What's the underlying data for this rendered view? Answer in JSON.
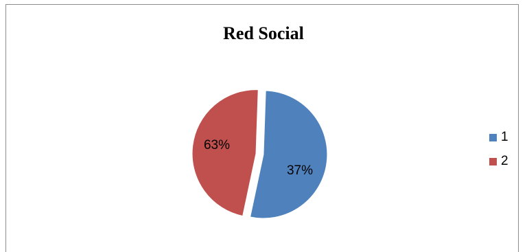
{
  "chart_data": {
    "type": "pie",
    "title": "Red Social",
    "slices": [
      {
        "label": "1",
        "value": 37,
        "display": "37%",
        "color": "#4F81BD"
      },
      {
        "label": "2",
        "value": 63,
        "display": "63%",
        "color": "#C0504D"
      }
    ],
    "legend_position": "right"
  }
}
